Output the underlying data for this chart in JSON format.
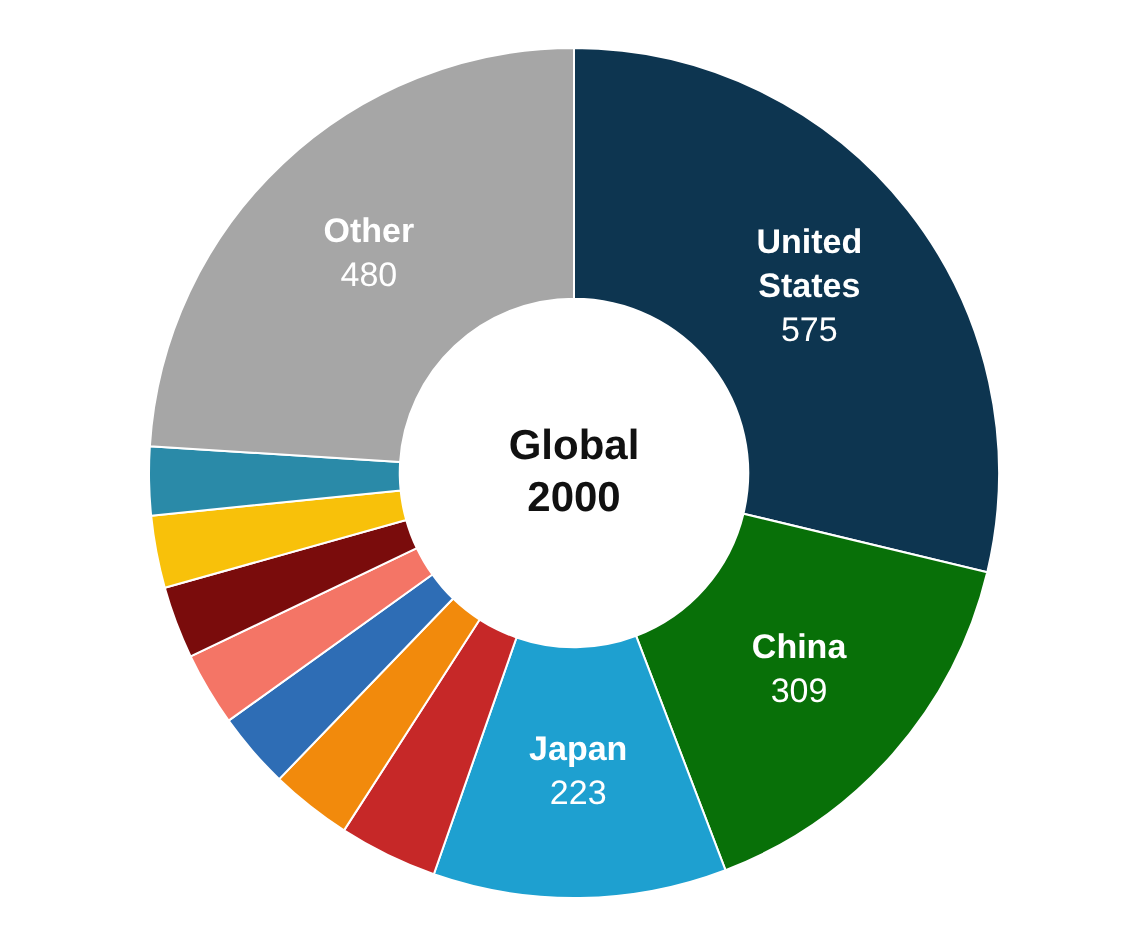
{
  "chart_data": {
    "type": "donut",
    "title": "Global 2000",
    "categories": [
      "United States",
      "China",
      "Japan",
      null,
      null,
      null,
      null,
      null,
      null,
      null,
      "Other"
    ],
    "values": [
      575,
      309,
      223,
      75,
      62,
      58,
      56,
      55,
      55,
      52,
      480
    ],
    "value_labels": [
      "575",
      "309",
      "223",
      null,
      null,
      null,
      null,
      null,
      null,
      null,
      "480"
    ],
    "colors": [
      "#0d3550",
      "#087008",
      "#1ea0d0",
      "#c62828",
      "#f28a0c",
      "#2e6db5",
      "#f47566",
      "#7a0c0c",
      "#f8c10a",
      "#2a8aa8",
      "#a6a6a6"
    ],
    "legend": false
  }
}
